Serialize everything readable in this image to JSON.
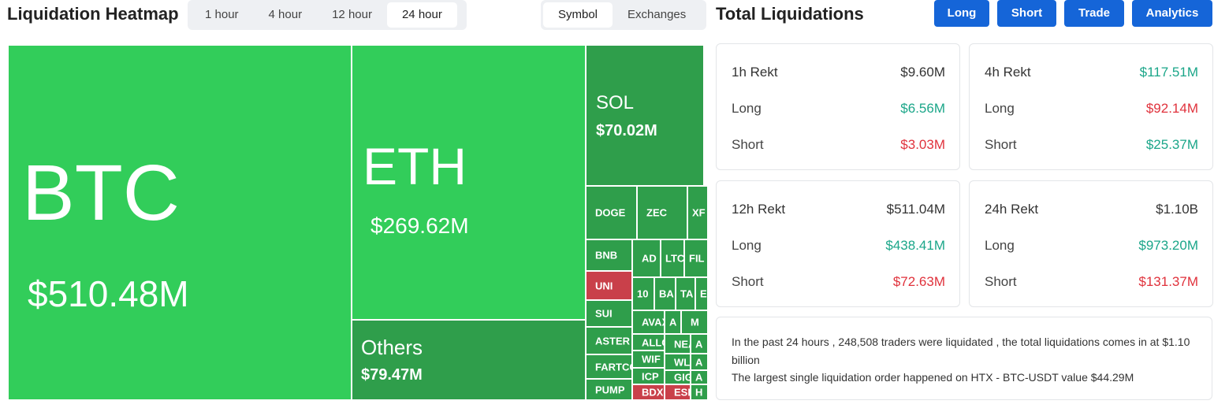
{
  "header": {
    "title": "Liquidation Heatmap",
    "time_tabs": [
      "1 hour",
      "4 hour",
      "12 hour",
      "24 hour"
    ],
    "view_tabs": [
      "Symbol",
      "Exchanges"
    ]
  },
  "treemap": {
    "tiles": [
      {
        "label": "BTC",
        "value": "$510.48M"
      },
      {
        "label": "ETH",
        "value": "$269.62M"
      },
      {
        "label": "Others",
        "value": "$79.47M"
      },
      {
        "label": "SOL",
        "value": "$70.02M"
      },
      {
        "label": "DOGE"
      },
      {
        "label": "ZEC"
      },
      {
        "label": "XF"
      },
      {
        "label": "BNB"
      },
      {
        "label": "UNI"
      },
      {
        "label": "SUI"
      },
      {
        "label": "ASTER"
      },
      {
        "label": "FARTCO"
      },
      {
        "label": "PUMP"
      },
      {
        "label": "AD"
      },
      {
        "label": "LTC"
      },
      {
        "label": "FIL"
      },
      {
        "label": "10"
      },
      {
        "label": "BA"
      },
      {
        "label": "TA"
      },
      {
        "label": "E"
      },
      {
        "label": "AVAX"
      },
      {
        "label": "A"
      },
      {
        "label": "M"
      },
      {
        "label": "ALLO"
      },
      {
        "label": "NEA"
      },
      {
        "label": "A"
      },
      {
        "label": "WIF"
      },
      {
        "label": "WLD"
      },
      {
        "label": "A"
      },
      {
        "label": "ICP"
      },
      {
        "label": "GIG"
      },
      {
        "label": "A"
      },
      {
        "label": "BDX"
      },
      {
        "label": "ESP"
      },
      {
        "label": "H"
      }
    ]
  },
  "summary": {
    "title": "Total Liquidations",
    "buttons": [
      "Long",
      "Short",
      "Trade",
      "Analytics"
    ],
    "cards": [
      {
        "title": "1h Rekt",
        "total": "$9.60M",
        "rows": [
          {
            "label": "Long",
            "value": "$6.56M",
            "color": "#1ba689"
          },
          {
            "label": "Short",
            "value": "$3.03M",
            "color": "#e0323c"
          }
        ]
      },
      {
        "title": "4h Rekt",
        "total": "$117.51M",
        "total_color": "#1ba689",
        "rows": [
          {
            "label": "Long",
            "value": "$92.14M",
            "color": "#e0323c"
          },
          {
            "label": "Short",
            "value": "$25.37M",
            "color": "#1ba689"
          }
        ]
      },
      {
        "title": "12h Rekt",
        "total": "$511.04M",
        "rows": [
          {
            "label": "Long",
            "value": "$438.41M",
            "color": "#1ba689"
          },
          {
            "label": "Short",
            "value": "$72.63M",
            "color": "#e0323c"
          }
        ]
      },
      {
        "title": "24h Rekt",
        "total": "$1.10B",
        "rows": [
          {
            "label": "Long",
            "value": "$973.20M",
            "color": "#1ba689"
          },
          {
            "label": "Short",
            "value": "$131.37M",
            "color": "#e0323c"
          }
        ]
      }
    ],
    "info": [
      "In the past 24 hours , 248,508 traders were liquidated , the total liquidations comes in at $1.10 billion",
      "The largest single liquidation order happened on HTX - BTC-USDT value $44.29M"
    ]
  }
}
